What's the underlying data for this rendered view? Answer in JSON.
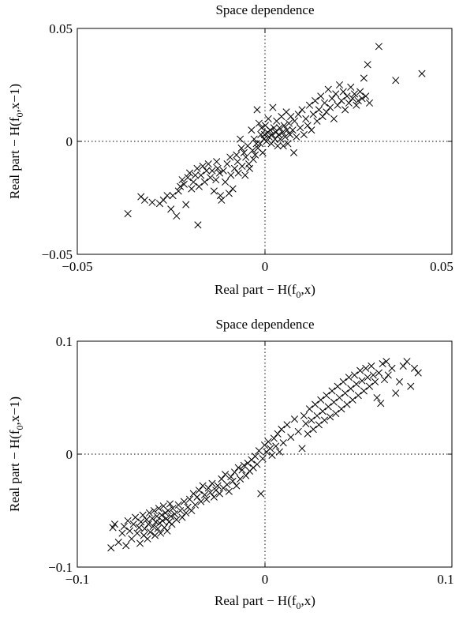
{
  "chart_data": [
    {
      "type": "scatter",
      "title": "Space dependence",
      "xlabel_main": "Real part − H(f",
      "xlabel_sub": "0",
      "xlabel_tail": ",x)",
      "ylabel_main": "Real part − H(f",
      "ylabel_sub": "0",
      "ylabel_tail": ",x−1)",
      "xlim": [
        -0.05,
        0.05
      ],
      "ylim": [
        -0.05,
        0.05
      ],
      "xticks": [
        "−0.05",
        "0",
        "0.05"
      ],
      "yticks": [
        "0.05",
        "0",
        "−0.05"
      ],
      "marker": "x",
      "grid": false,
      "zero_lines": true,
      "points": [
        [
          -0.0365,
          -0.032
        ],
        [
          -0.033,
          -0.0245
        ],
        [
          -0.032,
          -0.026
        ],
        [
          -0.03,
          -0.027
        ],
        [
          -0.028,
          -0.0275
        ],
        [
          -0.027,
          -0.026
        ],
        [
          -0.026,
          -0.024
        ],
        [
          -0.025,
          -0.03
        ],
        [
          -0.0245,
          -0.024
        ],
        [
          -0.0235,
          -0.033
        ],
        [
          -0.023,
          -0.022
        ],
        [
          -0.0225,
          -0.02
        ],
        [
          -0.022,
          -0.017
        ],
        [
          -0.0215,
          -0.019
        ],
        [
          -0.021,
          -0.028
        ],
        [
          -0.0205,
          -0.016
        ],
        [
          -0.02,
          -0.014
        ],
        [
          -0.0195,
          -0.021
        ],
        [
          -0.019,
          -0.018
        ],
        [
          -0.0185,
          -0.015
        ],
        [
          -0.018,
          -0.012
        ],
        [
          -0.0178,
          -0.037
        ],
        [
          -0.0175,
          -0.02
        ],
        [
          -0.017,
          -0.015
        ],
        [
          -0.0165,
          -0.011
        ],
        [
          -0.016,
          -0.018
        ],
        [
          -0.0155,
          -0.013
        ],
        [
          -0.015,
          -0.01
        ],
        [
          -0.0145,
          -0.016
        ],
        [
          -0.014,
          -0.013
        ],
        [
          -0.0135,
          -0.022
        ],
        [
          -0.013,
          -0.017
        ],
        [
          -0.0128,
          -0.009
        ],
        [
          -0.0125,
          -0.012
        ],
        [
          -0.012,
          -0.014
        ],
        [
          -0.0118,
          -0.024
        ],
        [
          -0.0115,
          -0.026
        ],
        [
          -0.011,
          -0.013
        ],
        [
          -0.0105,
          -0.018
        ],
        [
          -0.01,
          -0.01
        ],
        [
          -0.0095,
          -0.023
        ],
        [
          -0.0092,
          -0.007
        ],
        [
          -0.009,
          -0.015
        ],
        [
          -0.0085,
          -0.021
        ],
        [
          -0.008,
          -0.012
        ],
        [
          -0.0075,
          -0.006
        ],
        [
          -0.0072,
          -0.009
        ],
        [
          -0.007,
          -0.014
        ],
        [
          -0.0065,
          0.001
        ],
        [
          -0.0062,
          -0.003
        ],
        [
          -0.006,
          -0.011
        ],
        [
          -0.0055,
          -0.005
        ],
        [
          -0.0052,
          -0.015
        ],
        [
          -0.005,
          -0.007
        ],
        [
          -0.0045,
          -0.002
        ],
        [
          -0.0042,
          -0.01
        ],
        [
          -0.004,
          -0.012
        ],
        [
          -0.0035,
          0.005
        ],
        [
          -0.0032,
          -0.004
        ],
        [
          -0.003,
          -0.008
        ],
        [
          -0.0028,
          0.001
        ],
        [
          -0.0025,
          -0.006
        ],
        [
          -0.0022,
          -0.001
        ],
        [
          -0.002,
          0.014
        ],
        [
          -0.0018,
          -0.003
        ],
        [
          -0.0015,
          0.008
        ],
        [
          -0.0012,
          -0.001
        ],
        [
          -0.001,
          0.003
        ],
        [
          -0.0008,
          0.006
        ],
        [
          -0.0005,
          -0.005
        ],
        [
          -0.0002,
          0.001
        ],
        [
          0.0,
          0.003
        ],
        [
          0.0002,
          0.007
        ],
        [
          0.0005,
          0.0
        ],
        [
          0.0008,
          0.004
        ],
        [
          0.001,
          0.01
        ],
        [
          0.0012,
          0.002
        ],
        [
          0.0015,
          0.005
        ],
        [
          0.0018,
          -0.001
        ],
        [
          0.002,
          0.003
        ],
        [
          0.0022,
          0.015
        ],
        [
          0.0025,
          0.006
        ],
        [
          0.0028,
          0.001
        ],
        [
          0.003,
          0.004
        ],
        [
          0.0032,
          0.009
        ],
        [
          0.0035,
          -0.002
        ],
        [
          0.0038,
          0.003
        ],
        [
          0.004,
          0.006
        ],
        [
          0.0042,
          0.001
        ],
        [
          0.0045,
          0.011
        ],
        [
          0.0048,
          0.004
        ],
        [
          0.005,
          -0.002
        ],
        [
          0.0052,
          0.007
        ],
        [
          0.0055,
          0.002
        ],
        [
          0.0058,
          0.013
        ],
        [
          0.006,
          0.005
        ],
        [
          0.0062,
          -0.001
        ],
        [
          0.0065,
          0.008
        ],
        [
          0.0068,
          0.003
        ],
        [
          0.007,
          0.011
        ],
        [
          0.0075,
          0.005
        ],
        [
          0.0078,
          -0.005
        ],
        [
          0.008,
          0.009
        ],
        [
          0.0085,
          0.002
        ],
        [
          0.009,
          0.012
        ],
        [
          0.0095,
          0.006
        ],
        [
          0.01,
          0.014
        ],
        [
          0.0105,
          0.003
        ],
        [
          0.011,
          0.01
        ],
        [
          0.0115,
          0.007
        ],
        [
          0.012,
          0.016
        ],
        [
          0.0125,
          0.005
        ],
        [
          0.013,
          0.012
        ],
        [
          0.0135,
          0.018
        ],
        [
          0.014,
          0.009
        ],
        [
          0.0145,
          0.014
        ],
        [
          0.015,
          0.02
        ],
        [
          0.0155,
          0.011
        ],
        [
          0.016,
          0.017
        ],
        [
          0.0165,
          0.013
        ],
        [
          0.017,
          0.023
        ],
        [
          0.0175,
          0.015
        ],
        [
          0.018,
          0.019
        ],
        [
          0.0185,
          0.01
        ],
        [
          0.019,
          0.021
        ],
        [
          0.0195,
          0.016
        ],
        [
          0.02,
          0.025
        ],
        [
          0.0205,
          0.018
        ],
        [
          0.021,
          0.022
        ],
        [
          0.0215,
          0.014
        ],
        [
          0.022,
          0.02
        ],
        [
          0.0225,
          0.017
        ],
        [
          0.023,
          0.024
        ],
        [
          0.0235,
          0.019
        ],
        [
          0.024,
          0.021
        ],
        [
          0.0245,
          0.016
        ],
        [
          0.025,
          0.018
        ],
        [
          0.0255,
          0.022
        ],
        [
          0.026,
          0.019
        ],
        [
          0.0265,
          0.028
        ],
        [
          0.027,
          0.02
        ],
        [
          0.0275,
          0.034
        ],
        [
          0.028,
          0.017
        ],
        [
          0.0305,
          0.042
        ],
        [
          0.035,
          0.027
        ],
        [
          0.042,
          0.03
        ]
      ]
    },
    {
      "type": "scatter",
      "title": "Space dependence",
      "xlabel_main": "Real part − H(f",
      "xlabel_sub": "0",
      "xlabel_tail": ",x)",
      "ylabel_main": "Real part − H(f",
      "ylabel_sub": "0",
      "ylabel_tail": ",x−1)",
      "xlim": [
        -0.1,
        0.1
      ],
      "ylim": [
        -0.1,
        0.1
      ],
      "xticks": [
        "−0.1",
        "0",
        "0.1"
      ],
      "yticks": [
        "0.1",
        "0",
        "−0.1"
      ],
      "marker": "x",
      "grid": false,
      "zero_lines": true,
      "points": [
        [
          -0.082,
          -0.083
        ],
        [
          -0.081,
          -0.065
        ],
        [
          -0.08,
          -0.062
        ],
        [
          -0.078,
          -0.078
        ],
        [
          -0.076,
          -0.07
        ],
        [
          -0.075,
          -0.064
        ],
        [
          -0.074,
          -0.081
        ],
        [
          -0.073,
          -0.059
        ],
        [
          -0.072,
          -0.068
        ],
        [
          -0.071,
          -0.075
        ],
        [
          -0.07,
          -0.062
        ],
        [
          -0.069,
          -0.056
        ],
        [
          -0.068,
          -0.07
        ],
        [
          -0.067,
          -0.065
        ],
        [
          -0.0665,
          -0.079
        ],
        [
          -0.066,
          -0.06
        ],
        [
          -0.065,
          -0.054
        ],
        [
          -0.0645,
          -0.072
        ],
        [
          -0.064,
          -0.066
        ],
        [
          -0.063,
          -0.058
        ],
        [
          -0.0625,
          -0.075
        ],
        [
          -0.062,
          -0.062
        ],
        [
          -0.0615,
          -0.052
        ],
        [
          -0.061,
          -0.069
        ],
        [
          -0.06,
          -0.057
        ],
        [
          -0.0595,
          -0.064
        ],
        [
          -0.059,
          -0.05
        ],
        [
          -0.0585,
          -0.072
        ],
        [
          -0.058,
          -0.06
        ],
        [
          -0.0575,
          -0.055
        ],
        [
          -0.057,
          -0.066
        ],
        [
          -0.0565,
          -0.048
        ],
        [
          -0.056,
          -0.061
        ],
        [
          -0.0555,
          -0.07
        ],
        [
          -0.055,
          -0.054
        ],
        [
          -0.0545,
          -0.059
        ],
        [
          -0.054,
          -0.046
        ],
        [
          -0.0535,
          -0.065
        ],
        [
          -0.053,
          -0.052
        ],
        [
          -0.0525,
          -0.057
        ],
        [
          -0.052,
          -0.068
        ],
        [
          -0.0515,
          -0.05
        ],
        [
          -0.051,
          -0.06
        ],
        [
          -0.0505,
          -0.044
        ],
        [
          -0.05,
          -0.055
        ],
        [
          -0.0495,
          -0.062
        ],
        [
          -0.049,
          -0.048
        ],
        [
          -0.048,
          -0.053
        ],
        [
          -0.047,
          -0.058
        ],
        [
          -0.046,
          -0.045
        ],
        [
          -0.045,
          -0.05
        ],
        [
          -0.044,
          -0.056
        ],
        [
          -0.043,
          -0.042
        ],
        [
          -0.042,
          -0.052
        ],
        [
          -0.041,
          -0.047
        ],
        [
          -0.04,
          -0.04
        ],
        [
          -0.039,
          -0.05
        ],
        [
          -0.038,
          -0.035
        ],
        [
          -0.037,
          -0.045
        ],
        [
          -0.036,
          -0.038
        ],
        [
          -0.035,
          -0.032
        ],
        [
          -0.034,
          -0.042
        ],
        [
          -0.033,
          -0.028
        ],
        [
          -0.032,
          -0.036
        ],
        [
          -0.031,
          -0.04
        ],
        [
          -0.03,
          -0.03
        ],
        [
          -0.029,
          -0.034
        ],
        [
          -0.028,
          -0.026
        ],
        [
          -0.027,
          -0.038
        ],
        [
          -0.026,
          -0.032
        ],
        [
          -0.025,
          -0.028
        ],
        [
          -0.024,
          -0.035
        ],
        [
          -0.023,
          -0.022
        ],
        [
          -0.022,
          -0.03
        ],
        [
          -0.021,
          -0.018
        ],
        [
          -0.02,
          -0.027
        ],
        [
          -0.019,
          -0.033
        ],
        [
          -0.018,
          -0.02
        ],
        [
          -0.017,
          -0.024
        ],
        [
          -0.016,
          -0.016
        ],
        [
          -0.015,
          -0.028
        ],
        [
          -0.014,
          -0.012
        ],
        [
          -0.013,
          -0.022
        ],
        [
          -0.012,
          -0.014
        ],
        [
          -0.011,
          -0.01
        ],
        [
          -0.01,
          -0.019
        ],
        [
          -0.009,
          -0.008
        ],
        [
          -0.008,
          -0.015
        ],
        [
          -0.007,
          -0.005
        ],
        [
          -0.006,
          -0.012
        ],
        [
          -0.005,
          -0.002
        ],
        [
          -0.004,
          -0.009
        ],
        [
          -0.003,
          0.003
        ],
        [
          -0.002,
          -0.035
        ],
        [
          -0.001,
          -0.004
        ],
        [
          0.0,
          0.008
        ],
        [
          0.001,
          0.002
        ],
        [
          0.002,
          0.011
        ],
        [
          0.003,
          0.005
        ],
        [
          0.004,
          -0.001
        ],
        [
          0.005,
          0.014
        ],
        [
          0.006,
          0.007
        ],
        [
          0.007,
          0.018
        ],
        [
          0.008,
          0.002
        ],
        [
          0.009,
          0.022
        ],
        [
          0.01,
          0.01
        ],
        [
          0.012,
          0.026
        ],
        [
          0.014,
          0.015
        ],
        [
          0.016,
          0.031
        ],
        [
          0.018,
          0.02
        ],
        [
          0.02,
          0.005
        ],
        [
          0.021,
          0.034
        ],
        [
          0.022,
          0.027
        ],
        [
          0.023,
          0.018
        ],
        [
          0.024,
          0.04
        ],
        [
          0.025,
          0.03
        ],
        [
          0.026,
          0.022
        ],
        [
          0.027,
          0.044
        ],
        [
          0.028,
          0.034
        ],
        [
          0.029,
          0.026
        ],
        [
          0.03,
          0.048
        ],
        [
          0.031,
          0.038
        ],
        [
          0.032,
          0.03
        ],
        [
          0.033,
          0.052
        ],
        [
          0.034,
          0.042
        ],
        [
          0.035,
          0.033
        ],
        [
          0.036,
          0.056
        ],
        [
          0.037,
          0.046
        ],
        [
          0.038,
          0.036
        ],
        [
          0.039,
          0.06
        ],
        [
          0.04,
          0.05
        ],
        [
          0.041,
          0.04
        ],
        [
          0.042,
          0.064
        ],
        [
          0.043,
          0.054
        ],
        [
          0.044,
          0.044
        ],
        [
          0.045,
          0.068
        ],
        [
          0.046,
          0.058
        ],
        [
          0.047,
          0.048
        ],
        [
          0.048,
          0.07
        ],
        [
          0.049,
          0.062
        ],
        [
          0.05,
          0.052
        ],
        [
          0.051,
          0.074
        ],
        [
          0.052,
          0.065
        ],
        [
          0.053,
          0.056
        ],
        [
          0.054,
          0.076
        ],
        [
          0.055,
          0.068
        ],
        [
          0.056,
          0.06
        ],
        [
          0.057,
          0.078
        ],
        [
          0.058,
          0.07
        ],
        [
          0.059,
          0.064
        ],
        [
          0.06,
          0.05
        ],
        [
          0.061,
          0.072
        ],
        [
          0.062,
          0.045
        ],
        [
          0.063,
          0.08
        ],
        [
          0.064,
          0.066
        ],
        [
          0.065,
          0.082
        ],
        [
          0.066,
          0.07
        ],
        [
          0.068,
          0.076
        ],
        [
          0.07,
          0.054
        ],
        [
          0.072,
          0.064
        ],
        [
          0.074,
          0.078
        ],
        [
          0.076,
          0.082
        ],
        [
          0.078,
          0.06
        ],
        [
          0.08,
          0.076
        ],
        [
          0.082,
          0.072
        ]
      ]
    }
  ]
}
